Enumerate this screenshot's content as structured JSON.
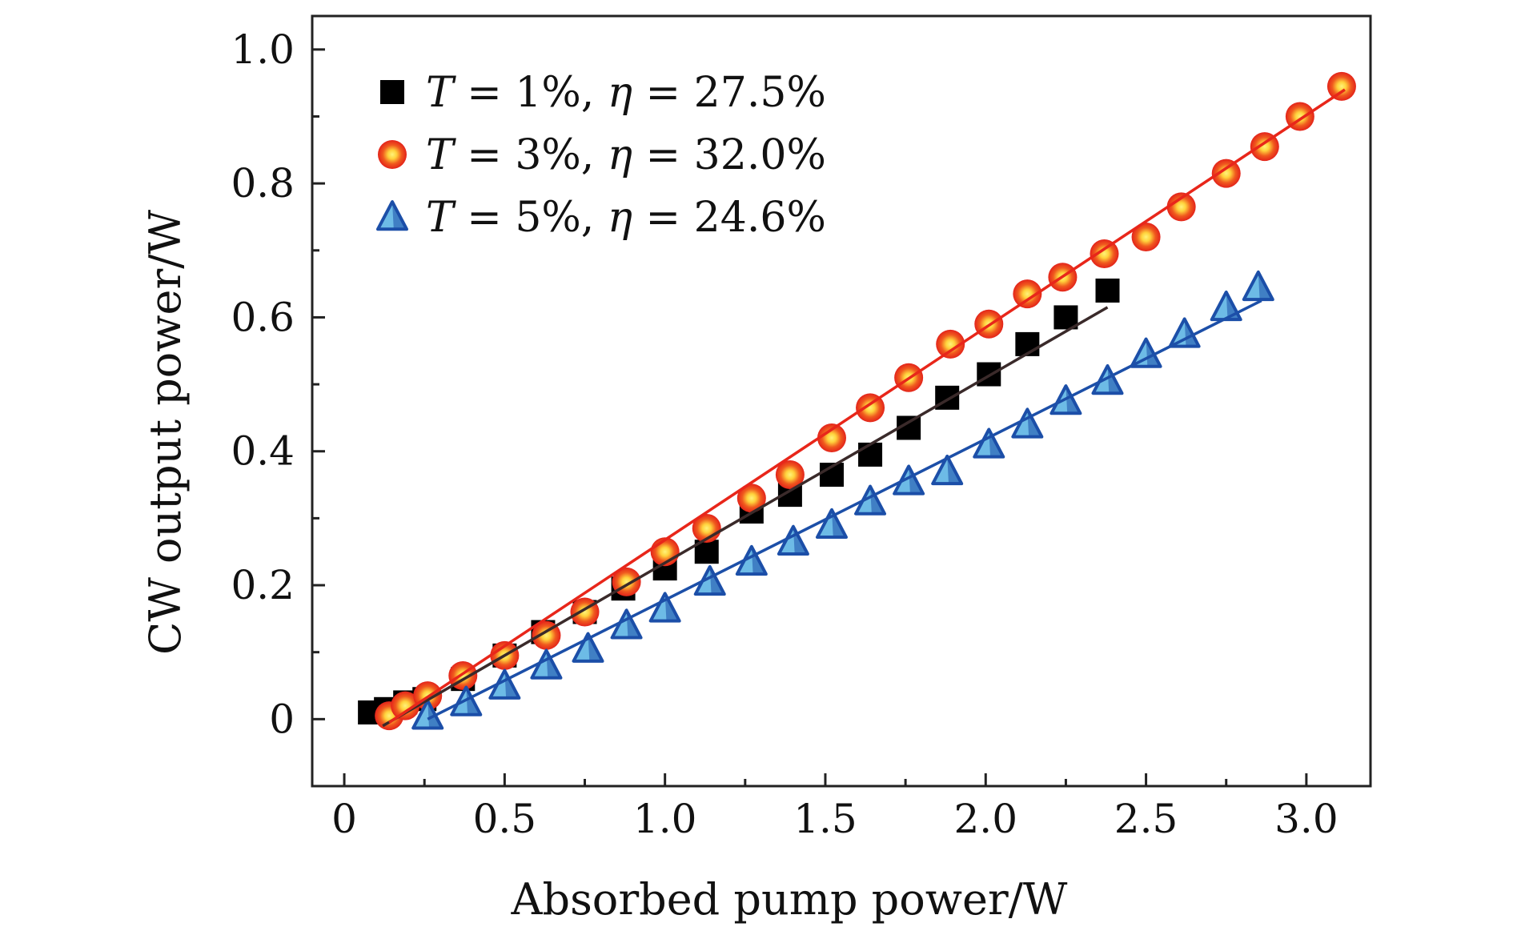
{
  "chart_data": {
    "type": "scatter",
    "xlabel": "Absorbed pump power/W",
    "ylabel": "CW output power/W",
    "xlim": [
      -0.1,
      3.2
    ],
    "ylim": [
      -0.1,
      1.05
    ],
    "x_ticks": [
      {
        "value": 0,
        "label": "0"
      },
      {
        "value": 0.5,
        "label": "0.5"
      },
      {
        "value": 1.0,
        "label": "1.0"
      },
      {
        "value": 1.5,
        "label": "1.5"
      },
      {
        "value": 2.0,
        "label": "2.0"
      },
      {
        "value": 2.5,
        "label": "2.5"
      },
      {
        "value": 3.0,
        "label": "3.0"
      }
    ],
    "y_ticks": [
      {
        "value": 0,
        "label": "0"
      },
      {
        "value": 0.2,
        "label": "0.2"
      },
      {
        "value": 0.4,
        "label": "0.4"
      },
      {
        "value": 0.6,
        "label": "0.6"
      },
      {
        "value": 0.8,
        "label": "0.8"
      },
      {
        "value": 1.0,
        "label": "1.0"
      }
    ],
    "legend_position": "top-left",
    "series": [
      {
        "name": "T = 1%, η = 27.5%",
        "legend_var": "T",
        "legend_eq1": " = 1%, ",
        "legend_eta": "η",
        "legend_eq2": " = 27.5%",
        "marker": "square",
        "color": "#000000",
        "fit_color": "#3a2a2a",
        "x": [
          0.08,
          0.13,
          0.19,
          0.25,
          0.37,
          0.5,
          0.62,
          0.75,
          0.87,
          1.0,
          1.13,
          1.27,
          1.39,
          1.52,
          1.64,
          1.76,
          1.88,
          2.01,
          2.13,
          2.25,
          2.38
        ],
        "y": [
          0.01,
          0.015,
          0.025,
          0.03,
          0.06,
          0.095,
          0.13,
          0.16,
          0.195,
          0.225,
          0.25,
          0.31,
          0.335,
          0.365,
          0.395,
          0.435,
          0.48,
          0.515,
          0.56,
          0.6,
          0.64
        ],
        "fit": {
          "x": [
            0.12,
            2.38
          ],
          "y": [
            -0.01,
            0.615
          ]
        }
      },
      {
        "name": "T = 3%, η = 32.0%",
        "legend_var": "T",
        "legend_eq1": " = 3%, ",
        "legend_eta": "η",
        "legend_eq2": " = 32.0%",
        "marker": "circle",
        "color": "#e8261a",
        "highlight": "#ffd23c",
        "fit_color": "#e8261a",
        "x": [
          0.14,
          0.19,
          0.26,
          0.37,
          0.5,
          0.63,
          0.75,
          0.88,
          1.0,
          1.13,
          1.27,
          1.39,
          1.52,
          1.64,
          1.76,
          1.89,
          2.01,
          2.13,
          2.24,
          2.37,
          2.5,
          2.61,
          2.75,
          2.87,
          2.98,
          3.11
        ],
        "y": [
          0.005,
          0.02,
          0.035,
          0.065,
          0.095,
          0.125,
          0.16,
          0.205,
          0.25,
          0.285,
          0.33,
          0.365,
          0.42,
          0.465,
          0.51,
          0.56,
          0.59,
          0.635,
          0.66,
          0.695,
          0.72,
          0.765,
          0.815,
          0.855,
          0.9,
          0.945
        ],
        "fit": {
          "x": [
            0.14,
            3.12
          ],
          "y": [
            -0.005,
            0.94
          ]
        }
      },
      {
        "name": "T = 5%, η = 24.6%",
        "legend_var": "T",
        "legend_eq1": " = 5%, ",
        "legend_eta": "η",
        "legend_eq2": " = 24.6%",
        "marker": "triangle",
        "color": "#1c4fa8",
        "fill": "#6dbbe6",
        "fit_color": "#1c4fa8",
        "x": [
          0.26,
          0.38,
          0.5,
          0.63,
          0.76,
          0.88,
          1.0,
          1.14,
          1.27,
          1.4,
          1.52,
          1.64,
          1.76,
          1.88,
          2.01,
          2.13,
          2.25,
          2.38,
          2.5,
          2.62,
          2.75,
          2.85
        ],
        "y": [
          0.005,
          0.025,
          0.05,
          0.08,
          0.105,
          0.14,
          0.165,
          0.205,
          0.235,
          0.265,
          0.29,
          0.325,
          0.355,
          0.37,
          0.41,
          0.44,
          0.475,
          0.505,
          0.545,
          0.575,
          0.615,
          0.645
        ],
        "fit": {
          "x": [
            0.26,
            2.86
          ],
          "y": [
            0.0,
            0.625
          ]
        }
      }
    ]
  }
}
